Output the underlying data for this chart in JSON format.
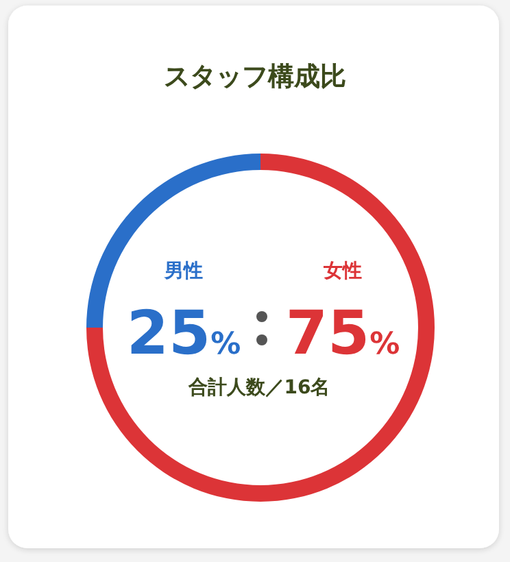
{
  "chart_data": {
    "type": "donut",
    "title": "スタッフ構成比",
    "categories": [
      "男性",
      "女性"
    ],
    "values": [
      25,
      75
    ],
    "colors": [
      "#2a6fc9",
      "#dc3437"
    ],
    "value_labels": [
      "25%",
      "75%"
    ],
    "annotations": [
      "合計人数／16名"
    ]
  }
}
